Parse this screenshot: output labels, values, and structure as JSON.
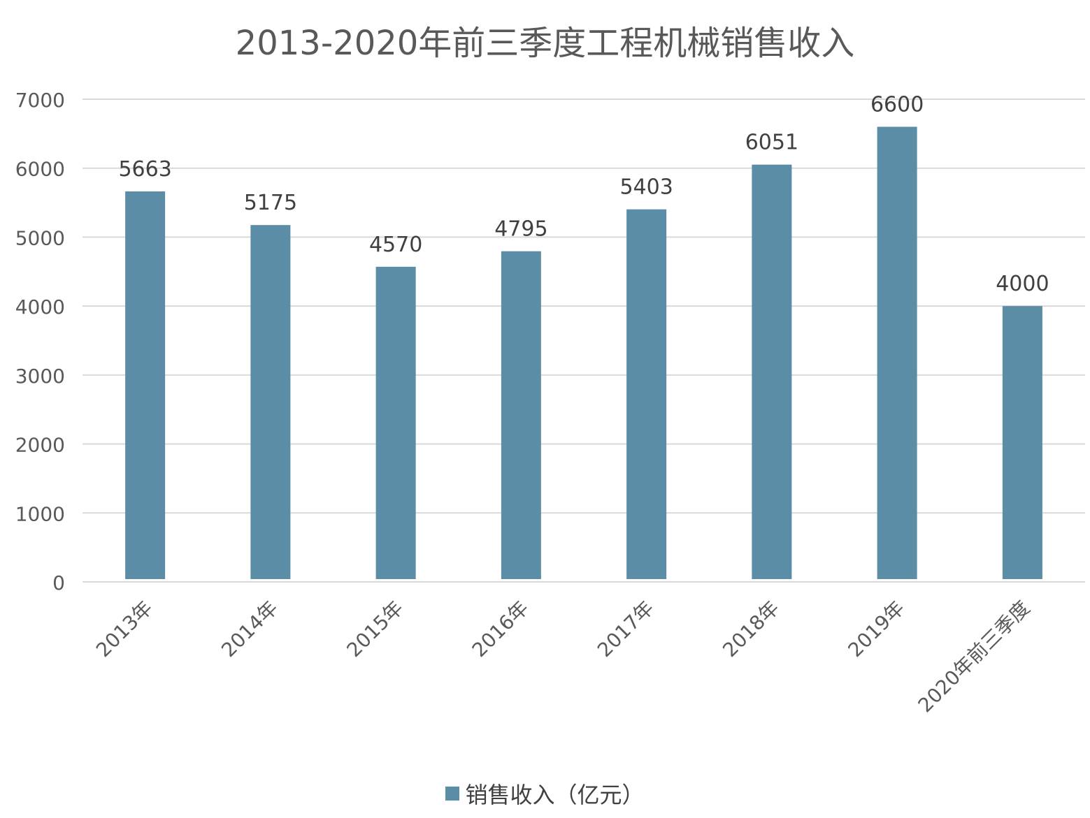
{
  "chart_data": {
    "type": "bar",
    "title": "2013-2020年前三季度工程机械销售收入",
    "categories": [
      "2013年",
      "2014年",
      "2015年",
      "2016年",
      "2017年",
      "2018年",
      "2019年",
      "2020年前三季度"
    ],
    "series": [
      {
        "name": "销售收入（亿元）",
        "values": [
          5663,
          5175,
          4570,
          4795,
          5403,
          6051,
          6600,
          4000
        ],
        "data_labels": [
          "5663",
          "5175",
          "4570",
          "4795",
          "5403",
          "6051",
          "6600",
          "4000"
        ]
      }
    ],
    "xlabel": "",
    "ylabel": "",
    "ylim": [
      0,
      7000
    ],
    "yticks": [
      0,
      1000,
      2000,
      3000,
      4000,
      5000,
      6000,
      7000
    ],
    "ytick_labels": [
      "0",
      "1000",
      "2000",
      "3000",
      "4000",
      "5000",
      "6000",
      "7000"
    ],
    "grid": true,
    "legend_position": "bottom",
    "colors": {
      "bar": "#5b8da6",
      "grid": "#d9d9d9",
      "title_text": "#595959",
      "axis_text": "#595959",
      "label_text": "#404040"
    }
  }
}
